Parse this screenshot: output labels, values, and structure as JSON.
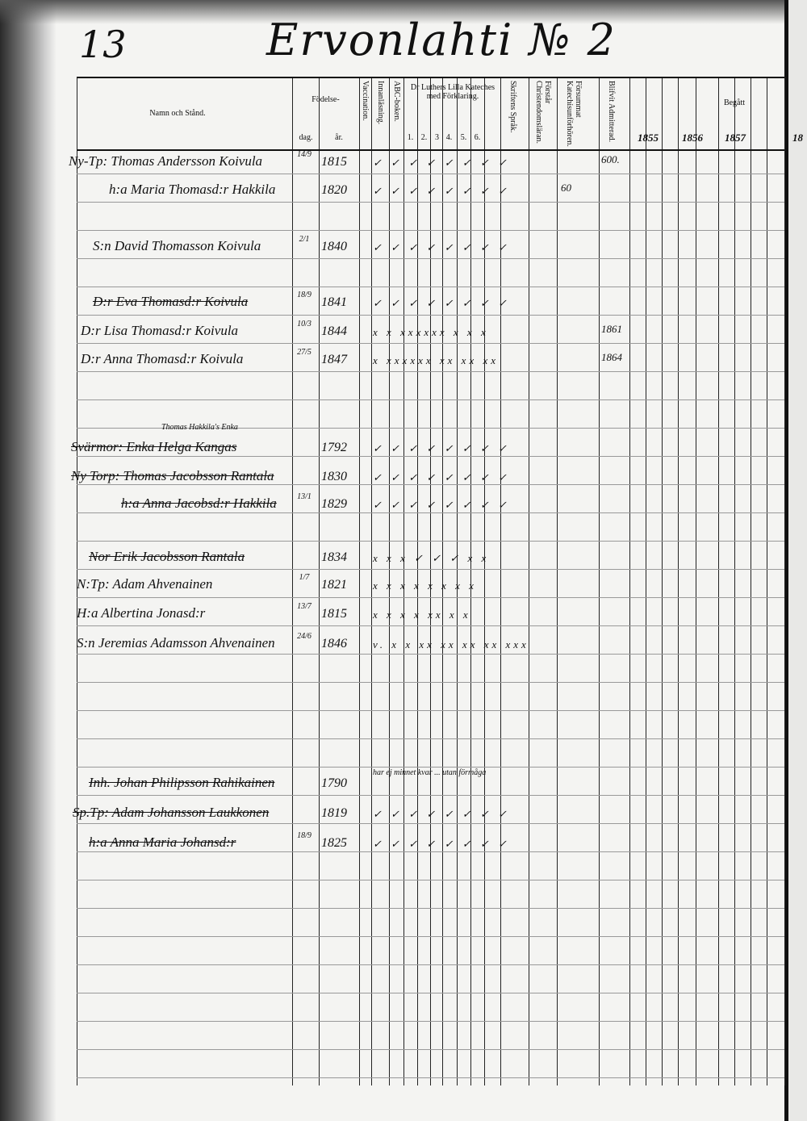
{
  "page_number": "13",
  "village_title": "Ervonlahti № 2",
  "headers": {
    "name": "Namn och Stånd.",
    "birth": "Födelse-",
    "day": "dag.",
    "year": "år.",
    "vaccination": "Vaccination.",
    "reading": "Innanläsning.",
    "abc": "ABC-boken.",
    "catechism": "Dr Luthers Lilla Kateches med Förklaring.",
    "catechism_parts": [
      "1.",
      "2.",
      "3",
      "4.",
      "5.",
      "6."
    ],
    "scripture": "Skriftens Språk.",
    "understands": "Förstår Christendomsläran.",
    "missed": "Försummat Katechisunförhören.",
    "admitted": "Blifvit Admitterad.",
    "communion": "Begått",
    "years": [
      "1855",
      "1856",
      "1857",
      "18"
    ]
  },
  "entries": [
    {
      "name": "Ny-Tp: Thomas Andersson Koivula",
      "day": "14/9",
      "year": "1815",
      "marks": "✓ ✓ ✓ ✓ ✓ ✓ ✓ ✓",
      "extra": "600.",
      "strike": false
    },
    {
      "name": "h:a Maria Thomasd:r Hakkila",
      "day": "",
      "year": "1820",
      "marks": "✓ ✓ ✓ ✓ ✓ ✓ ✓ ✓",
      "extra": "60",
      "strike": false
    },
    {
      "name": "S:n David Thomasson Koivula",
      "day": "2/1",
      "year": "1840",
      "marks": "✓ ✓ ✓ ✓ ✓ ✓ ✓ ✓",
      "extra": "",
      "strike": false
    },
    {
      "name": "D:r Eva Thomasd:r Koivula",
      "day": "18/9",
      "year": "1841",
      "marks": "✓ ✓ ✓ ✓ ✓ ✓ ✓ ✓",
      "extra": "",
      "strike": true
    },
    {
      "name": "D:r Lisa Thomasd:r Koivula",
      "day": "10/3",
      "year": "1844",
      "marks": "x x xxxxxx x x x",
      "extra": "1861",
      "strike": false
    },
    {
      "name": "D:r Anna Thomasd:r Koivula",
      "day": "27/5",
      "year": "1847",
      "marks": "x xxxxxx xx xx xx",
      "extra": "1864",
      "strike": false
    },
    {
      "name": "Thomas Hakkila's Enka",
      "day": "",
      "year": "",
      "marks": "",
      "extra": "",
      "strike": false,
      "note": true
    },
    {
      "name": "Svärmor: Enka Helga Kangas",
      "day": "",
      "year": "1792",
      "marks": "✓ ✓ ✓ ✓ ✓ ✓ ✓ ✓",
      "extra": "",
      "strike": true
    },
    {
      "name": "Ny Torp: Thomas Jacobsson Rantala",
      "day": "",
      "year": "1830",
      "marks": "✓ ✓ ✓ ✓ ✓ ✓ ✓ ✓",
      "extra": "",
      "strike": true
    },
    {
      "name": "h:a Anna Jacobsd:r Hakkila",
      "day": "13/1",
      "year": "1829",
      "marks": "✓ ✓ ✓ ✓ ✓ ✓ ✓ ✓",
      "extra": "",
      "strike": true
    },
    {
      "name": "Nor Erik Jacobsson Rantala",
      "day": "",
      "year": "1834",
      "marks": "x x x ✓ ✓ ✓ x x",
      "extra": "",
      "strike": true
    },
    {
      "name": "N:Tp: Adam Ahvenainen",
      "day": "1/7",
      "year": "1821",
      "marks": "x x x x x x x x",
      "extra": "",
      "strike": false
    },
    {
      "name": "H:a Albertina Jonasd:r",
      "day": "13/7",
      "year": "1815",
      "marks": "x x x x xx x x",
      "extra": "",
      "strike": false
    },
    {
      "name": "S:n Jeremias Adamsson Ahvenainen",
      "day": "24/6",
      "year": "1846",
      "marks": "v. x x xx xx xx xx xxx",
      "extra": "",
      "strike": false
    },
    {
      "name": "Inh. Johan Philipsson Rahikainen",
      "day": "",
      "year": "1790",
      "marks": "",
      "extra": "",
      "strike": true,
      "remark": "har ej minnet kvar ... utan förmåga"
    },
    {
      "name": "Sp.Tp: Adam Johansson Laukkonen",
      "day": "",
      "year": "1819",
      "marks": "✓ ✓ ✓ ✓ ✓ ✓ ✓ ✓",
      "extra": "",
      "strike": true
    },
    {
      "name": "h:a Anna Maria Johansd:r",
      "day": "18/9",
      "year": "1825",
      "marks": "✓ ✓ ✓ ✓ ✓ ✓ ✓ ✓",
      "extra": "",
      "strike": true
    }
  ]
}
